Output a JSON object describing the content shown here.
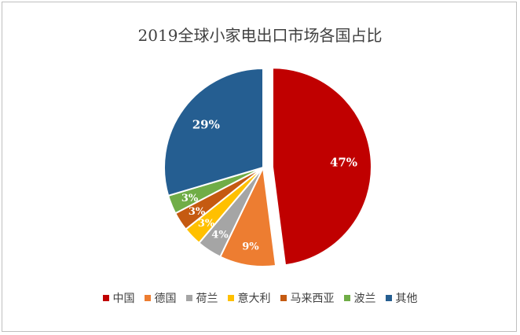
{
  "chart_data": {
    "type": "pie",
    "title": "2019全球小家电出口市场各国占比",
    "categories": [
      "中国",
      "德国",
      "荷兰",
      "意大利",
      "马来西亚",
      "波兰",
      "其他"
    ],
    "values": [
      47,
      9,
      4,
      3,
      3,
      3,
      29
    ],
    "labels": [
      "47%",
      "9%",
      "4%",
      "3%",
      "3%",
      "3%",
      "29%"
    ],
    "colors": [
      "#C00000",
      "#ED7D31",
      "#A5A5A5",
      "#FFC000",
      "#C55A11",
      "#70AD47",
      "#255E91"
    ],
    "exploded": "中国",
    "legend": "bottom"
  }
}
